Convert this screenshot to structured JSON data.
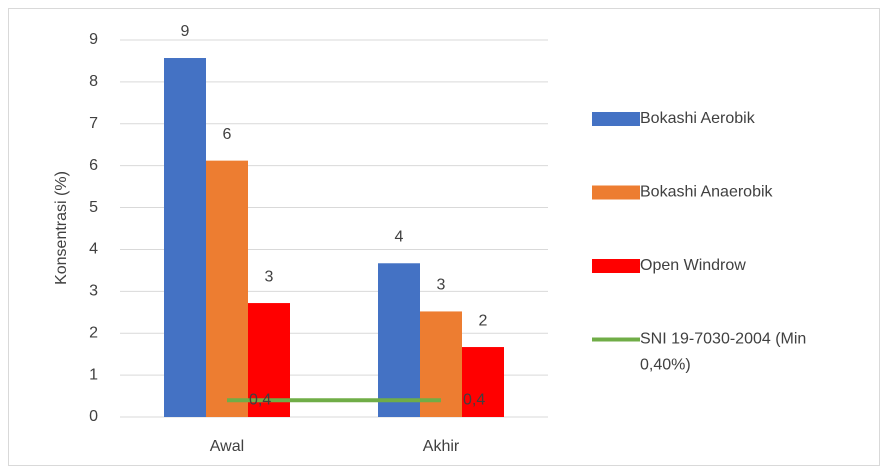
{
  "chart_data": {
    "type": "bar",
    "categories": [
      "Awal",
      "Akhir"
    ],
    "series": [
      {
        "name": "Bokashi Aerobik",
        "color": "#4472c4",
        "values": [
          8.57,
          3.67
        ],
        "value_labels": [
          "9",
          "4"
        ]
      },
      {
        "name": "Bokashi Anaerobik",
        "color": "#ed7d31",
        "values": [
          6.12,
          2.52
        ],
        "value_labels": [
          "6",
          "3"
        ]
      },
      {
        "name": "Open Windrow",
        "color": "#ff0000",
        "values": [
          2.72,
          1.67
        ],
        "value_labels": [
          "3",
          "2"
        ]
      },
      {
        "name": "SNI 19-7030-2004 (Min 0,40%)",
        "type": "line",
        "color": "#70ad47",
        "values": [
          0.4,
          0.4
        ],
        "value_labels": [
          "0,4",
          "0,4"
        ]
      }
    ],
    "ylabel": "Konsentrasi (%)",
    "ylim": [
      0,
      9
    ],
    "yticks": [
      0,
      1,
      2,
      3,
      4,
      5,
      6,
      7,
      8,
      9
    ],
    "grid": true,
    "legend": "right"
  }
}
